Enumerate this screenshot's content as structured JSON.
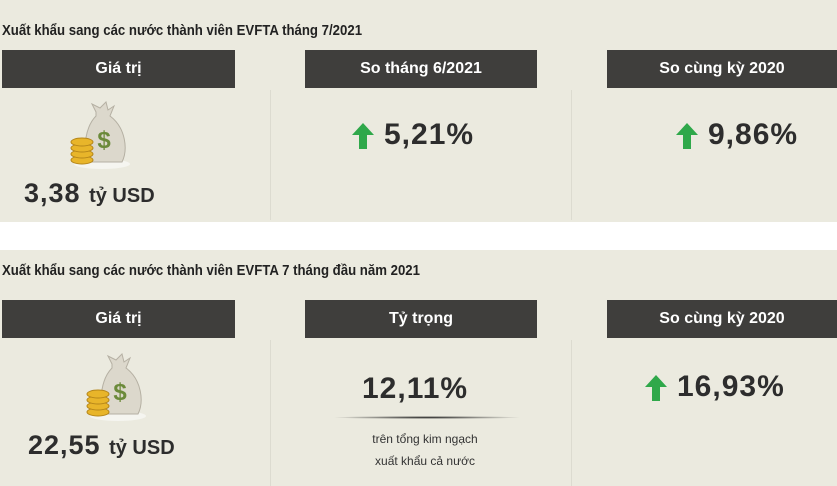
{
  "section1": {
    "title": "Xuất khẩu sang các nước thành viên EVFTA tháng 7/2021",
    "headers": [
      "Giá trị",
      "So tháng 6/2021",
      "So cùng kỳ 2020"
    ],
    "value": "3,38",
    "unit": "tỷ USD",
    "mom": "5,21%",
    "yoy": "9,86%"
  },
  "section2": {
    "title": "Xuất khẩu sang các nước thành viên EVFTA 7 tháng đầu năm 2021",
    "headers": [
      "Giá trị",
      "Tỷ trọng",
      "So cùng kỳ 2020"
    ],
    "value": "22,55",
    "unit": "tỷ USD",
    "share": "12,11%",
    "share_note1": "trên tổng kim ngạch",
    "share_note2": "xuất khẩu cả nước",
    "yoy": "16,93%"
  },
  "colors": {
    "up_arrow": "#2fa84a",
    "header_bg": "#3f3e3c",
    "panel_bg": "#ebeadf"
  },
  "icons": [
    "money-bag-icon",
    "up-arrow-icon"
  ]
}
